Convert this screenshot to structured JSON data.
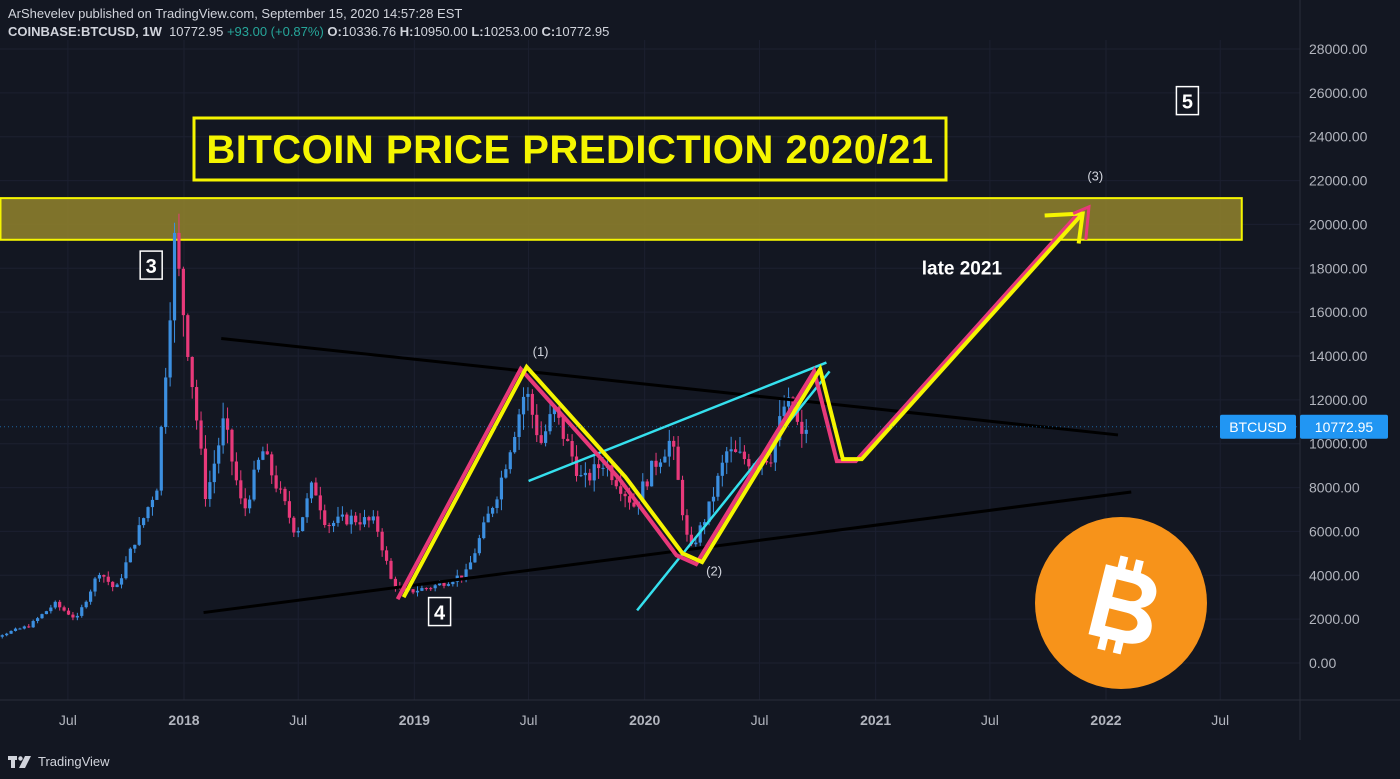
{
  "header": {
    "publish_line": "ArShevelev published on TradingView.com, September 15, 2020 14:57:28 EST",
    "symbol": "COINBASE:BTCUSD, 1W",
    "last": "10772.95",
    "change": "+93.00 (+0.87%)",
    "open_label": "O:",
    "open": "10336.76",
    "high_label": "H:",
    "high": "10950.00",
    "low_label": "L:",
    "low": "10253.00",
    "close_label": "C:",
    "close": "10772.95"
  },
  "footer": {
    "brand": "TradingView"
  },
  "colors": {
    "background": "#131722",
    "up_candle": "#3c8fe0",
    "down_candle": "#e8397a",
    "yellow": "#f5f500",
    "pink": "#e8397a",
    "cyan": "#35e0ee",
    "zone_fill": "#8c7d2c",
    "bitcoin_orange": "#f7931a",
    "price_tag": "#2196f3"
  },
  "chart_data": {
    "type": "candlestick",
    "title": "BITCOIN PRICE PREDICTION 2020/21",
    "timeframe": "1W",
    "ylim": [
      -1000,
      28500
    ],
    "y_ticks": [
      0,
      2000,
      4000,
      6000,
      8000,
      10000,
      12000,
      14000,
      16000,
      18000,
      20000,
      22000,
      24000,
      26000,
      28000
    ],
    "y_tick_labels": [
      "0.00",
      "2000.00",
      "4000.00",
      "6000.00",
      "8000.00",
      "10000.00",
      "12000.00",
      "14000.00",
      "16000.00",
      "18000.00",
      "20000.00",
      "22000.00",
      "24000.00",
      "26000.00",
      "28000.00"
    ],
    "x_range": [
      "2017-01-15",
      "2022-10-01"
    ],
    "x_ticks": [
      {
        "date": "2017-07-01",
        "label": "Jul",
        "bold": false
      },
      {
        "date": "2018-01-01",
        "label": "2018",
        "bold": true
      },
      {
        "date": "2018-07-01",
        "label": "Jul",
        "bold": false
      },
      {
        "date": "2019-01-01",
        "label": "2019",
        "bold": true
      },
      {
        "date": "2019-07-01",
        "label": "Jul",
        "bold": false
      },
      {
        "date": "2020-01-01",
        "label": "2020",
        "bold": true
      },
      {
        "date": "2020-07-01",
        "label": "Jul",
        "bold": false
      },
      {
        "date": "2021-01-01",
        "label": "2021",
        "bold": true
      },
      {
        "date": "2021-07-01",
        "label": "Jul",
        "bold": false
      },
      {
        "date": "2022-01-01",
        "label": "2022",
        "bold": true
      },
      {
        "date": "2022-07-01",
        "label": "Jul",
        "bold": false
      }
    ],
    "price_path": [
      [
        "2017-01-15",
        950
      ],
      [
        "2017-03-01",
        1150
      ],
      [
        "2017-05-01",
        1700
      ],
      [
        "2017-06-10",
        2700
      ],
      [
        "2017-07-15",
        2000
      ],
      [
        "2017-08-20",
        4200
      ],
      [
        "2017-09-15",
        3300
      ],
      [
        "2017-10-15",
        5600
      ],
      [
        "2017-11-20",
        8200
      ],
      [
        "2017-12-17",
        19200
      ],
      [
        "2018-01-07",
        14500
      ],
      [
        "2018-02-05",
        7500
      ],
      [
        "2018-03-05",
        11000
      ],
      [
        "2018-04-05",
        6800
      ],
      [
        "2018-05-05",
        9700
      ],
      [
        "2018-06-28",
        5900
      ],
      [
        "2018-07-25",
        8200
      ],
      [
        "2018-08-15",
        6300
      ],
      [
        "2018-09-20",
        6600
      ],
      [
        "2018-11-01",
        6400
      ],
      [
        "2018-11-25",
        3800
      ],
      [
        "2018-12-15",
        3200
      ],
      [
        "2019-02-01",
        3500
      ],
      [
        "2019-03-25",
        4100
      ],
      [
        "2019-05-15",
        8000
      ],
      [
        "2019-06-26",
        12500
      ],
      [
        "2019-07-20",
        10000
      ],
      [
        "2019-08-10",
        11500
      ],
      [
        "2019-09-25",
        8200
      ],
      [
        "2019-10-28",
        9200
      ],
      [
        "2019-12-15",
        7200
      ],
      [
        "2020-01-15",
        9000
      ],
      [
        "2020-02-12",
        10200
      ],
      [
        "2020-03-12",
        5000
      ],
      [
        "2020-04-10",
        6900
      ],
      [
        "2020-05-10",
        9600
      ],
      [
        "2020-06-20",
        9200
      ],
      [
        "2020-07-20",
        9500
      ],
      [
        "2020-08-10",
        11800
      ],
      [
        "2020-08-25",
        11500
      ],
      [
        "2020-09-05",
        10100
      ],
      [
        "2020-09-13",
        10772.95
      ]
    ],
    "zone": {
      "from": "2017-01-15",
      "to": "2022-08-20",
      "low": 19300,
      "high": 21200
    },
    "trendlines": [
      {
        "name": "upper-triangle-line",
        "color": "black",
        "from": [
          "2018-03-01",
          14800
        ],
        "to": [
          "2022-01-20",
          10400
        ]
      },
      {
        "name": "lower-triangle-line",
        "color": "black",
        "from": [
          "2018-02-01",
          2300
        ],
        "to": [
          "2022-02-10",
          7800
        ]
      },
      {
        "name": "channel-top",
        "color": "cyan",
        "from": [
          "2019-07-01",
          8300
        ],
        "to": [
          "2020-10-15",
          13700
        ]
      },
      {
        "name": "channel-bottom",
        "color": "cyan",
        "from": [
          "2019-12-20",
          2400
        ],
        "to": [
          "2020-10-20",
          13300
        ]
      }
    ],
    "wave_path": [
      [
        "2018-12-15",
        3000
      ],
      [
        "2019-06-28",
        13500
      ],
      [
        "2019-12-01",
        8500
      ],
      [
        "2020-03-01",
        5000
      ],
      [
        "2020-04-01",
        4600
      ],
      [
        "2020-10-05",
        13400
      ],
      [
        "2020-11-10",
        9300
      ],
      [
        "2020-12-10",
        9300
      ],
      [
        "2021-11-25",
        20500
      ]
    ],
    "arrow_tail": [
      [
        "2021-11-10",
        20500
      ],
      [
        "2021-12-05",
        20800
      ],
      [
        "2021-11-30",
        19300
      ]
    ],
    "wave_labels": [
      {
        "id": "wave-1",
        "text": "(1)",
        "date": "2019-07-20",
        "price": 14000
      },
      {
        "id": "wave-2",
        "text": "(2)",
        "date": "2020-04-20",
        "price": 4000
      },
      {
        "id": "wave-3",
        "text": "(3)",
        "date": "2021-12-15",
        "price": 22000
      }
    ],
    "boxed_labels": [
      {
        "id": "label-3",
        "text": "3",
        "date": "2017-11-10",
        "price": 18100
      },
      {
        "id": "label-4",
        "text": "4",
        "date": "2019-02-10",
        "price": 2300
      },
      {
        "id": "label-5",
        "text": "5",
        "date": "2022-05-10",
        "price": 25600
      }
    ],
    "annotations": [
      {
        "id": "late-2021-note",
        "text": "late 2021",
        "date": "2021-03-15",
        "price": 18000
      }
    ],
    "last_price": {
      "symbol": "BTCUSD",
      "value": "10772.95",
      "price": 10772.95
    }
  }
}
